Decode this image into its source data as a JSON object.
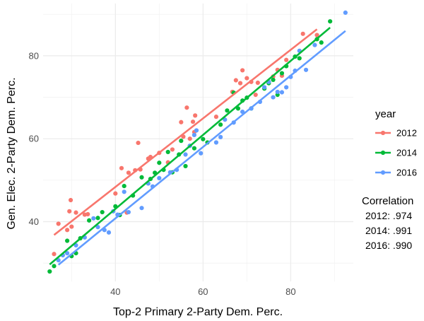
{
  "chart_data": {
    "type": "scatter",
    "xlabel": "Top-2 Primary 2-Party Dem. Perc.",
    "ylabel": "Gen. Elec. 2-Party Dem. Perc.",
    "xlim": [
      23.5,
      94.3
    ],
    "ylim": [
      25.6,
      92.6
    ],
    "x_ticks": [
      40,
      60,
      80
    ],
    "y_ticks": [
      40,
      60,
      80
    ],
    "x_tick_labels": [
      "40",
      "60",
      "80"
    ],
    "y_tick_labels": [
      "40",
      "60",
      "80"
    ],
    "grid": true,
    "legend": {
      "title": "year",
      "placement": "right"
    },
    "series": [
      {
        "name": "2012",
        "color": "#F8766D",
        "fit": {
          "x": [
            26,
            86
          ],
          "y": [
            36.8,
            86.4
          ]
        },
        "points": [
          [
            26,
            32.2
          ],
          [
            27,
            39.5
          ],
          [
            29,
            38.0
          ],
          [
            29.5,
            42.5
          ],
          [
            29.8,
            45.2
          ],
          [
            30,
            38.8
          ],
          [
            31,
            42.2
          ],
          [
            33,
            41.7
          ],
          [
            33.7,
            41.8
          ],
          [
            40,
            46.8
          ],
          [
            41.4,
            52.9
          ],
          [
            42.6,
            42.2
          ],
          [
            43,
            51.8
          ],
          [
            44.5,
            52.4
          ],
          [
            45.2,
            59.0
          ],
          [
            45.7,
            52.6
          ],
          [
            47.5,
            55.2
          ],
          [
            48,
            55.6
          ],
          [
            50,
            56.6
          ],
          [
            52,
            54.3
          ],
          [
            53,
            57.4
          ],
          [
            55,
            64.0
          ],
          [
            55.5,
            60.5
          ],
          [
            56.3,
            67.5
          ],
          [
            57,
            60.0
          ],
          [
            57.7,
            64.1
          ],
          [
            58,
            61.6
          ],
          [
            58.2,
            65.6
          ],
          [
            63,
            65.3
          ],
          [
            66.7,
            71.3
          ],
          [
            67.5,
            74.1
          ],
          [
            68.5,
            73.4
          ],
          [
            69,
            76.5
          ],
          [
            70,
            74.6
          ],
          [
            71,
            73.7
          ],
          [
            72,
            70.6
          ],
          [
            72.5,
            73.5
          ],
          [
            76,
            75.0
          ],
          [
            77,
            76.6
          ],
          [
            78,
            75.2
          ],
          [
            79,
            79.0
          ],
          [
            82.8,
            85.3
          ],
          [
            86,
            85.0
          ]
        ]
      },
      {
        "name": "2014",
        "color": "#00BA38",
        "fit": {
          "x": [
            25,
            89
          ],
          "y": [
            29.7,
            86.8
          ]
        },
        "points": [
          [
            25,
            28.0
          ],
          [
            26,
            29.3
          ],
          [
            29,
            35.4
          ],
          [
            30,
            31.7
          ],
          [
            31,
            32.4
          ],
          [
            32,
            36.0
          ],
          [
            34,
            40.3
          ],
          [
            36,
            40.9
          ],
          [
            37,
            42.3
          ],
          [
            40,
            43.7
          ],
          [
            41,
            41.6
          ],
          [
            42,
            48.6
          ],
          [
            44,
            46.3
          ],
          [
            46,
            50.7
          ],
          [
            48,
            50.3
          ],
          [
            49,
            51.8
          ],
          [
            50,
            54.2
          ],
          [
            51,
            52.5
          ],
          [
            52,
            56.8
          ],
          [
            53,
            51.9
          ],
          [
            54.5,
            56.2
          ],
          [
            55,
            59.5
          ],
          [
            56,
            53.4
          ],
          [
            57,
            58.3
          ],
          [
            58,
            57.7
          ],
          [
            60,
            59.9
          ],
          [
            61,
            59.1
          ],
          [
            64,
            63.4
          ],
          [
            65.5,
            66.8
          ],
          [
            67,
            71.1
          ],
          [
            68,
            67.3
          ],
          [
            69,
            69.2
          ],
          [
            70,
            69.9
          ],
          [
            71,
            67.3
          ],
          [
            74,
            72.1
          ],
          [
            75,
            73.4
          ],
          [
            76,
            74.2
          ],
          [
            77,
            70.6
          ],
          [
            78,
            75.8
          ],
          [
            79,
            77.5
          ],
          [
            81,
            79.8
          ],
          [
            82,
            79.4
          ],
          [
            86,
            84.0
          ],
          [
            87,
            83.2
          ],
          [
            89,
            88.3
          ]
        ]
      },
      {
        "name": "2016",
        "color": "#619CFF",
        "fit": {
          "x": [
            27,
            92.5
          ],
          "y": [
            29.6,
            86.0
          ]
        },
        "points": [
          [
            27,
            30.7
          ],
          [
            28,
            31.9
          ],
          [
            29,
            32.4
          ],
          [
            31,
            34.3
          ],
          [
            33,
            36.2
          ],
          [
            35,
            40.8
          ],
          [
            36,
            38.7
          ],
          [
            37.5,
            38.0
          ],
          [
            38.5,
            37.4
          ],
          [
            39.5,
            42.5
          ],
          [
            40.5,
            41.7
          ],
          [
            42,
            47.2
          ],
          [
            43,
            42.3
          ],
          [
            46,
            43.3
          ],
          [
            47.5,
            49.2
          ],
          [
            48.5,
            48.5
          ],
          [
            50,
            50.5
          ],
          [
            52.5,
            51.9
          ],
          [
            54,
            52.5
          ],
          [
            56,
            56.2
          ],
          [
            57,
            58.3
          ],
          [
            58,
            60.9
          ],
          [
            58.5,
            62.0
          ],
          [
            59.5,
            56.5
          ],
          [
            63,
            59.1
          ],
          [
            64,
            60.4
          ],
          [
            65,
            64.6
          ],
          [
            67,
            63.9
          ],
          [
            69,
            66.5
          ],
          [
            71,
            67.3
          ],
          [
            73,
            68.9
          ],
          [
            74,
            72.4
          ],
          [
            75,
            73.7
          ],
          [
            76,
            70.0
          ],
          [
            77,
            71.3
          ],
          [
            78,
            71.2
          ],
          [
            79,
            72.4
          ],
          [
            80,
            74.9
          ],
          [
            81,
            76.4
          ],
          [
            82,
            81.2
          ],
          [
            83.5,
            76.6
          ],
          [
            85.5,
            82.6
          ],
          [
            92.5,
            90.4
          ]
        ]
      }
    ],
    "annotation": {
      "title": "Correlation",
      "lines": [
        "2012: .974",
        "2014: .991",
        "2016: .990"
      ]
    }
  }
}
